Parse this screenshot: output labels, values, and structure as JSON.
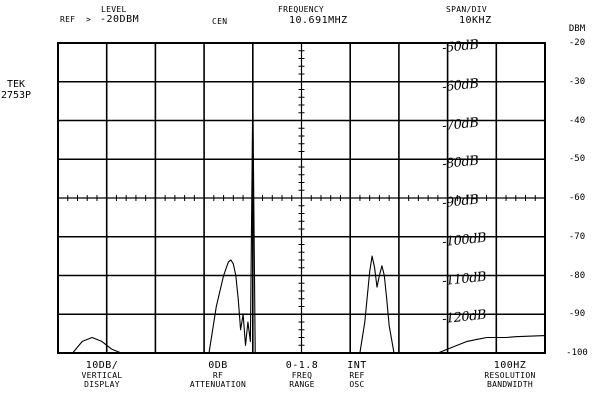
{
  "header": {
    "level_label": "LEVEL",
    "ref_label": "REF",
    "ref_arrow": ">",
    "ref_value": "-20DBM",
    "cen_label": "CEN",
    "frequency_label": "FREQUENCY",
    "frequency_value": "10.691MHZ",
    "span_label": "SPAN/DIV",
    "span_value": "10KHZ"
  },
  "instrument": {
    "brand": "TEK",
    "model": "2753P"
  },
  "footer": {
    "vertical_display_value": "10DB/",
    "vertical_display_label1": "VERTICAL",
    "vertical_display_label2": "DISPLAY",
    "rf_attenuation_value": "0DB",
    "rf_attenuation_label1": "RF",
    "rf_attenuation_label2": "ATTENUATION",
    "freq_range_value": "0-1.8",
    "freq_range_label1": "FREQ",
    "freq_range_label2": "RANGE",
    "ref_osc_value": "INT",
    "ref_osc_label1": "REF",
    "ref_osc_label2": "OSC",
    "resolution_bandwidth_value": "100HZ",
    "resolution_bandwidth_label1": "RESOLUTION",
    "resolution_bandwidth_label2": "BANDWIDTH"
  },
  "chart_data": {
    "type": "line",
    "y_unit": "DBM",
    "y_ticks": [
      "-20",
      "-30",
      "-40",
      "-50",
      "-60",
      "-70",
      "-80",
      "-90",
      "-100"
    ],
    "ylim": [
      -100,
      -20
    ],
    "xlim": [
      -5,
      5
    ],
    "x_divisions": 10,
    "y_divisions": 8,
    "grid": true,
    "handwritten_annotations": [
      "-50dB",
      "-60dB",
      "-70dB",
      "-80dB",
      "-90dB",
      "-100dB",
      "-110dB",
      "-120dB"
    ],
    "annotation_levels": [
      -20,
      -30,
      -40,
      -50,
      -60,
      -70,
      -80,
      -90
    ],
    "series": [
      {
        "x": [
          -4.7,
          -4.5,
          -4.3,
          -4.1,
          -3.9,
          -3.7,
          -3.5,
          -3.3,
          -3.1,
          -2.9,
          -2.7,
          -2.5,
          -2.3,
          -2.1,
          -1.9,
          -1.75,
          -1.6,
          -1.5,
          -1.45,
          -1.4,
          -1.35,
          -1.3,
          -1.25,
          -1.2,
          -1.15,
          -1.1,
          -1.05,
          -1.0,
          -0.95,
          -0.9,
          -0.8,
          -0.5,
          0.0,
          0.5,
          1.0,
          1.2,
          1.3,
          1.4,
          1.45,
          1.5,
          1.55,
          1.6,
          1.65,
          1.7,
          1.75,
          1.8,
          1.9,
          2.0,
          2.1,
          2.2,
          2.4,
          2.6,
          2.8,
          3.0,
          3.2,
          3.4,
          3.6,
          3.8,
          4.0,
          4.2,
          4.4,
          4.6,
          4.8,
          5.0
        ],
        "y": [
          -100,
          -97,
          -96,
          -97,
          -99,
          -100,
          -100,
          -100,
          -100,
          -100,
          -100,
          -100,
          -100,
          -100,
          -100,
          -88,
          -80,
          -76.5,
          -76,
          -77,
          -80,
          -86,
          -94,
          -90,
          -98,
          -92,
          -97,
          -33,
          -100,
          -100,
          -100,
          -100,
          -100,
          -100,
          -100,
          -100,
          -92,
          -79,
          -75,
          -78,
          -83,
          -80,
          -77.5,
          -80,
          -86,
          -93,
          -100,
          -100,
          -100,
          -100,
          -100,
          -100,
          -100,
          -99,
          -98,
          -97,
          -96.5,
          -96,
          -96,
          -96,
          -95.8,
          -95.7,
          -95.6,
          -95.5
        ]
      }
    ]
  }
}
